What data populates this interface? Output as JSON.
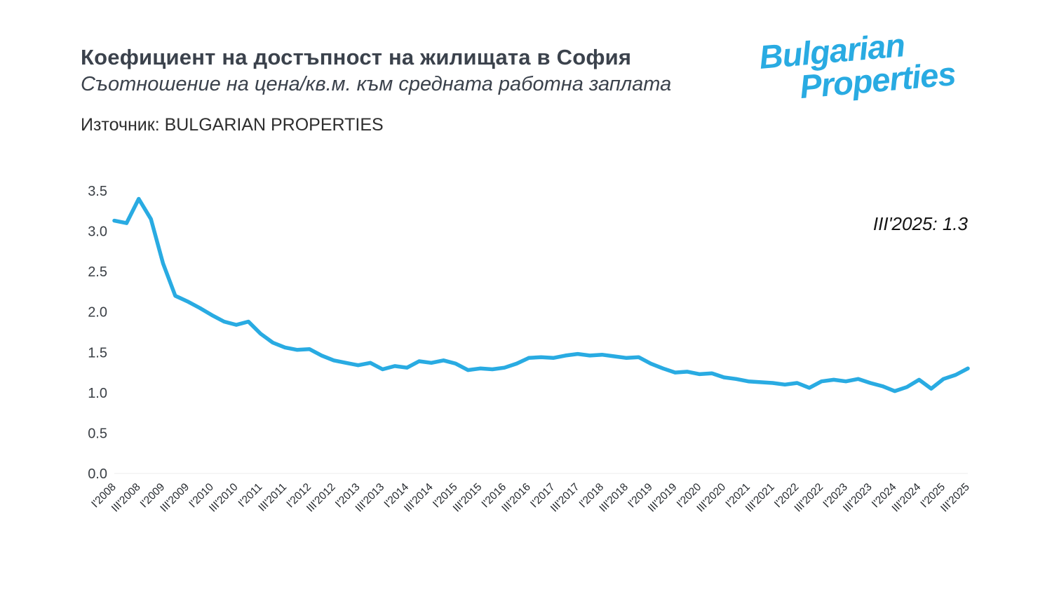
{
  "header": {
    "title": "Коефициент на достъпност на жилищата в София",
    "subtitle": "Съотношение на цена/кв.м. към средната работна заплата",
    "source": "Източник: BULGARIAN PROPERTIES"
  },
  "logo": {
    "line1": "Bulgarian",
    "line2": "Properties",
    "color": "#29abe2"
  },
  "chart_data": {
    "type": "line",
    "title": "Коефициент на достъпност на жилищата в София",
    "subtitle": "Съотношение на цена/кв.м. към средната работна заплата",
    "xlabel": "",
    "ylabel": "",
    "frequency": "quarterly",
    "x_start": "I'2008",
    "x_end": "III'2025",
    "points_per_tick": 2,
    "x_tick_labels": [
      "I'2008",
      "III'2008",
      "I'2009",
      "III'2009",
      "I'2010",
      "III'2010",
      "I'2011",
      "III'2011",
      "I'2012",
      "III'2012",
      "I'2013",
      "III'2013",
      "I'2014",
      "III'2014",
      "I'2015",
      "III'2015",
      "I'2016",
      "III'2016",
      "I'2017",
      "III'2017",
      "I'2018",
      "III'2018",
      "I'2019",
      "III'2019",
      "I'2020",
      "III'2020",
      "I'2021",
      "III'2021",
      "I'2022",
      "III'2022",
      "I'2023",
      "III'2023",
      "I'2024",
      "III'2024",
      "I'2025",
      "III'2025"
    ],
    "values": [
      3.13,
      3.1,
      3.4,
      3.15,
      2.6,
      2.2,
      2.13,
      2.05,
      1.96,
      1.88,
      1.84,
      1.88,
      1.73,
      1.62,
      1.56,
      1.53,
      1.54,
      1.46,
      1.4,
      1.37,
      1.34,
      1.37,
      1.29,
      1.33,
      1.31,
      1.39,
      1.37,
      1.4,
      1.36,
      1.28,
      1.3,
      1.29,
      1.31,
      1.36,
      1.43,
      1.44,
      1.43,
      1.46,
      1.48,
      1.46,
      1.47,
      1.45,
      1.43,
      1.44,
      1.36,
      1.3,
      1.25,
      1.26,
      1.23,
      1.24,
      1.19,
      1.17,
      1.14,
      1.13,
      1.12,
      1.1,
      1.12,
      1.06,
      1.14,
      1.16,
      1.14,
      1.17,
      1.12,
      1.08,
      1.02,
      1.07,
      1.16,
      1.05,
      1.17,
      1.22,
      1.3
    ],
    "ylim": [
      0,
      3.5
    ],
    "y_ticks": [
      0.0,
      0.5,
      1.0,
      1.5,
      2.0,
      2.5,
      3.0,
      3.5
    ],
    "grid": false,
    "legend": "none",
    "line_color": "#29abe2",
    "annotation": "III'2025: 1.3"
  }
}
